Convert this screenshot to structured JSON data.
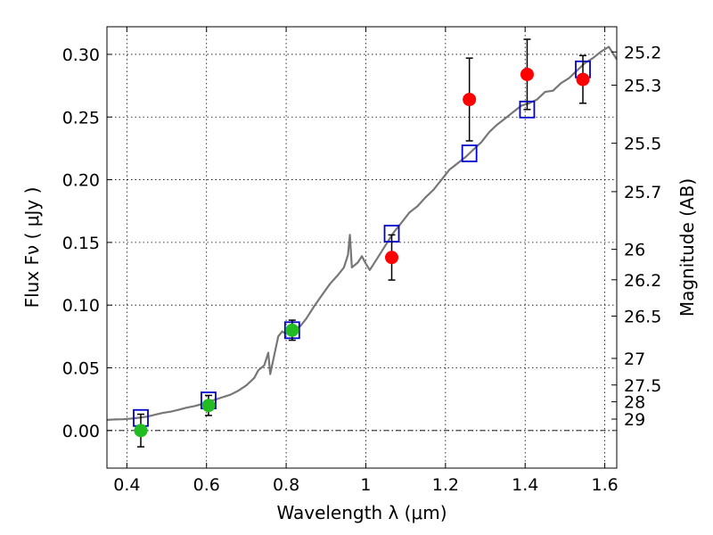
{
  "chart_data": {
    "type": "scatter",
    "xlabel": "Wavelength  λ (μm)",
    "ylabel": "Flux  Fν  ( μJy )",
    "ylabel2": "Magnitude (AB)",
    "xlim": [
      0.35,
      1.63
    ],
    "ylim": [
      -0.03,
      0.322
    ],
    "grid": true,
    "grid_style": "dotted",
    "x_ticks": [
      0.4,
      0.6,
      0.8,
      1.0,
      1.2,
      1.4,
      1.6
    ],
    "x_tick_labels": [
      "0.4",
      "0.6",
      "0.8",
      "1",
      "1.2",
      "1.4",
      "1.6"
    ],
    "y_ticks": [
      0.0,
      0.05,
      0.1,
      0.15,
      0.2,
      0.25,
      0.3
    ],
    "y_tick_labels": [
      "0.00",
      "0.05",
      "0.10",
      "0.15",
      "0.20",
      "0.25",
      "0.30"
    ],
    "mag_ticks": [
      {
        "label": "25.2",
        "flux": 0.3019
      },
      {
        "label": "25.3",
        "flux": 0.2754
      },
      {
        "label": "25.5",
        "flux": 0.2291
      },
      {
        "label": "25.7",
        "flux": 0.1905
      },
      {
        "label": "26",
        "flux": 0.1445
      },
      {
        "label": "26.2",
        "flux": 0.1202
      },
      {
        "label": "26.5",
        "flux": 0.0912
      },
      {
        "label": "27",
        "flux": 0.0575
      },
      {
        "label": "27.5",
        "flux": 0.0363
      },
      {
        "label": "28",
        "flux": 0.0229
      },
      {
        "label": "29",
        "flux": 0.0091
      }
    ],
    "zero_line": {
      "y": 0.0,
      "style": "dash-dot"
    },
    "colors": {
      "spectrum": "#777777",
      "model": "#0000cc",
      "red": "#ff0000",
      "green": "#22bb22",
      "errorbar": "#000000"
    },
    "spectrum": [
      [
        0.35,
        0.0085
      ],
      [
        0.37,
        0.0088
      ],
      [
        0.39,
        0.009
      ],
      [
        0.41,
        0.0095
      ],
      [
        0.43,
        0.0102
      ],
      [
        0.45,
        0.011
      ],
      [
        0.47,
        0.0125
      ],
      [
        0.49,
        0.014
      ],
      [
        0.51,
        0.015
      ],
      [
        0.53,
        0.0165
      ],
      [
        0.55,
        0.0182
      ],
      [
        0.57,
        0.0195
      ],
      [
        0.59,
        0.0212
      ],
      [
        0.605,
        0.023
      ],
      [
        0.62,
        0.0245
      ],
      [
        0.64,
        0.0265
      ],
      [
        0.66,
        0.0285
      ],
      [
        0.68,
        0.0318
      ],
      [
        0.7,
        0.036
      ],
      [
        0.72,
        0.042
      ],
      [
        0.73,
        0.048
      ],
      [
        0.745,
        0.052
      ],
      [
        0.755,
        0.062
      ],
      [
        0.76,
        0.045
      ],
      [
        0.77,
        0.06
      ],
      [
        0.78,
        0.075
      ],
      [
        0.79,
        0.079
      ],
      [
        0.8,
        0.077
      ],
      [
        0.81,
        0.079
      ],
      [
        0.82,
        0.081
      ],
      [
        0.835,
        0.083
      ],
      [
        0.85,
        0.089
      ],
      [
        0.87,
        0.099
      ],
      [
        0.89,
        0.108
      ],
      [
        0.91,
        0.117
      ],
      [
        0.93,
        0.124
      ],
      [
        0.945,
        0.13
      ],
      [
        0.955,
        0.14
      ],
      [
        0.96,
        0.156
      ],
      [
        0.965,
        0.13
      ],
      [
        0.98,
        0.134
      ],
      [
        0.99,
        0.139
      ],
      [
        1.0,
        0.133
      ],
      [
        1.01,
        0.128
      ],
      [
        1.03,
        0.138
      ],
      [
        1.05,
        0.148
      ],
      [
        1.07,
        0.158
      ],
      [
        1.09,
        0.166
      ],
      [
        1.11,
        0.174
      ],
      [
        1.13,
        0.179
      ],
      [
        1.15,
        0.186
      ],
      [
        1.17,
        0.192
      ],
      [
        1.19,
        0.2
      ],
      [
        1.21,
        0.208
      ],
      [
        1.23,
        0.213
      ],
      [
        1.25,
        0.218
      ],
      [
        1.27,
        0.224
      ],
      [
        1.29,
        0.23
      ],
      [
        1.31,
        0.238
      ],
      [
        1.33,
        0.244
      ],
      [
        1.35,
        0.249
      ],
      [
        1.37,
        0.254
      ],
      [
        1.39,
        0.259
      ],
      [
        1.41,
        0.261
      ],
      [
        1.43,
        0.264
      ],
      [
        1.45,
        0.27
      ],
      [
        1.47,
        0.271
      ],
      [
        1.49,
        0.277
      ],
      [
        1.51,
        0.281
      ],
      [
        1.53,
        0.287
      ],
      [
        1.55,
        0.293
      ],
      [
        1.57,
        0.297
      ],
      [
        1.59,
        0.302
      ],
      [
        1.61,
        0.306
      ],
      [
        1.63,
        0.296
      ]
    ],
    "model_points": [
      {
        "x": 0.435,
        "y": 0.01
      },
      {
        "x": 0.605,
        "y": 0.024
      },
      {
        "x": 0.815,
        "y": 0.08
      },
      {
        "x": 1.065,
        "y": 0.157
      },
      {
        "x": 1.26,
        "y": 0.221
      },
      {
        "x": 1.405,
        "y": 0.256
      },
      {
        "x": 1.545,
        "y": 0.288
      }
    ],
    "observed_points": [
      {
        "x": 0.435,
        "y": 0.0,
        "err": 0.013,
        "color": "green"
      },
      {
        "x": 0.605,
        "y": 0.02,
        "err": 0.008,
        "color": "green"
      },
      {
        "x": 0.815,
        "y": 0.08,
        "err": 0.008,
        "color": "green"
      },
      {
        "x": 1.065,
        "y": 0.138,
        "err": 0.018,
        "color": "red"
      },
      {
        "x": 1.26,
        "y": 0.264,
        "err": 0.033,
        "color": "red"
      },
      {
        "x": 1.405,
        "y": 0.284,
        "err": 0.028,
        "color": "red"
      },
      {
        "x": 1.545,
        "y": 0.28,
        "err": 0.019,
        "color": "red"
      }
    ]
  }
}
